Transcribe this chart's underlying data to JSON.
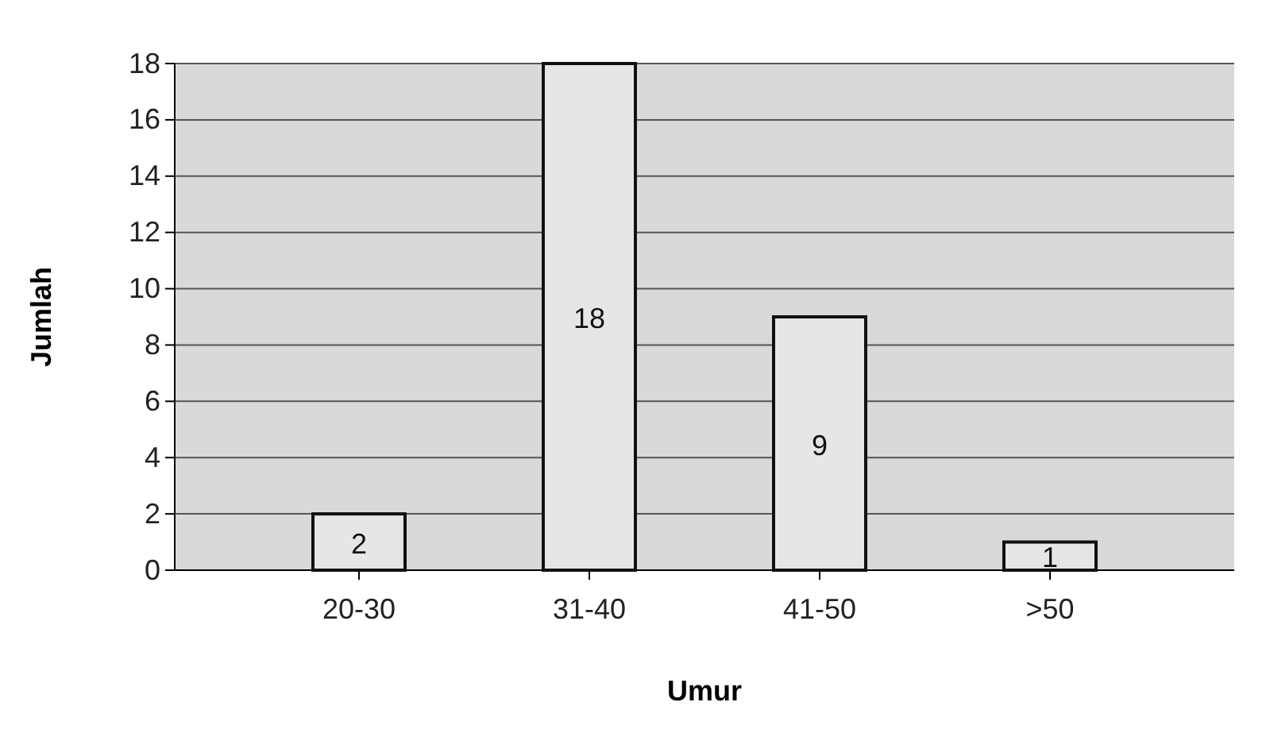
{
  "chart_data": {
    "type": "bar",
    "xlabel": "Umur",
    "ylabel": "Jumlah",
    "categories": [
      "20-30",
      "31-40",
      "41-50",
      ">50"
    ],
    "values": [
      2,
      18,
      9,
      1
    ],
    "color": "#e6e6e6",
    "ylim": [
      0,
      18
    ],
    "yticks": [
      0,
      2,
      4,
      6,
      8,
      10,
      12,
      14,
      16,
      18
    ],
    "grid": "y",
    "data_labels": true
  }
}
